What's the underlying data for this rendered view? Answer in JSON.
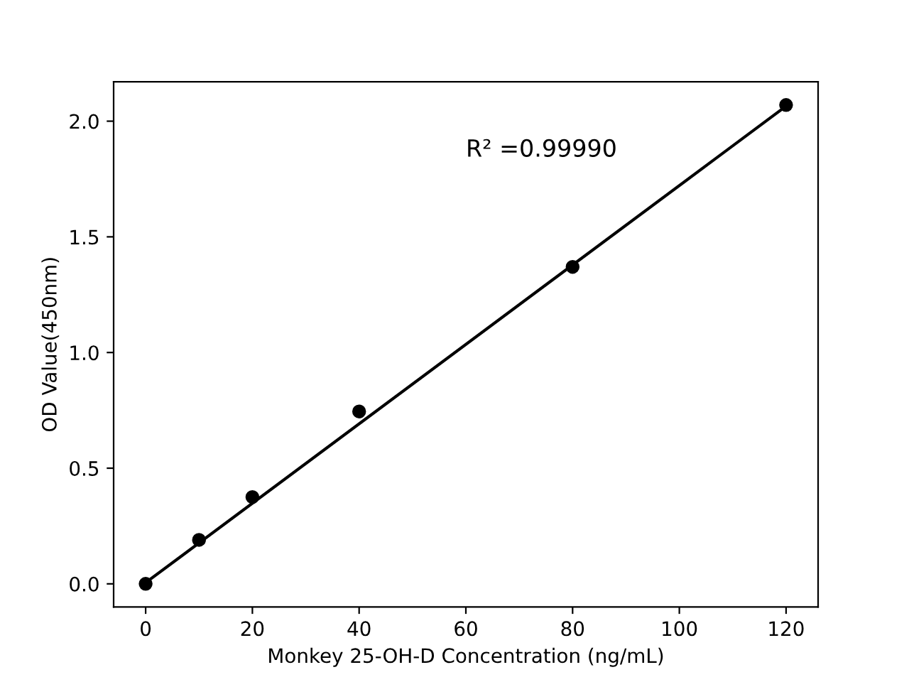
{
  "chart_data": {
    "type": "scatter",
    "xlabel": "Monkey 25-OH-D Concentration (ng/mL)",
    "ylabel": "OD Value(450nm)",
    "annotations": [
      "R² =0.99990"
    ],
    "series": [
      {
        "color": "#000000",
        "x": [
          0,
          10,
          20,
          40,
          80,
          120
        ],
        "values": [
          0.0,
          0.19,
          0.375,
          0.745,
          1.37,
          2.07
        ],
        "marker": "circle"
      },
      {
        "type": "line",
        "color": "#000000",
        "x": [
          0,
          120
        ],
        "values": [
          0.005,
          2.065
        ],
        "marker": "none",
        "line_style": "solid"
      }
    ],
    "xlim": [
      -6,
      126
    ],
    "xticks": [
      0,
      20,
      40,
      60,
      80,
      100,
      120
    ],
    "ylim": [
      -0.1,
      2.17
    ],
    "yticks": [
      {
        "value": 0,
        "label": "0.0"
      },
      {
        "value": 0.5,
        "label": "0.5"
      },
      {
        "value": 1,
        "label": "1.0"
      },
      {
        "value": 1.5,
        "label": "1.5"
      },
      {
        "value": 2,
        "label": "2.0"
      }
    ],
    "grid": false,
    "legend": false
  }
}
